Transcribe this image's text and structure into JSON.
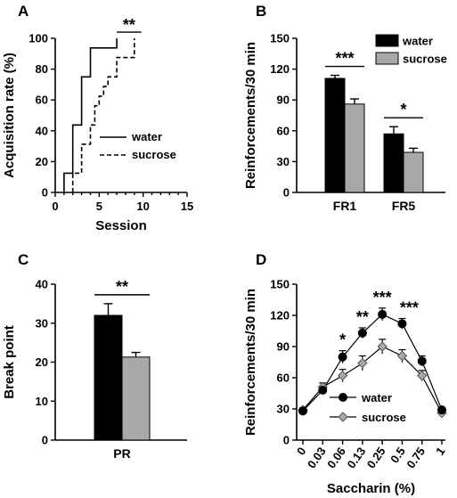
{
  "colors": {
    "water": "#000000",
    "sucrose": "#a8a8a8",
    "err": "#000000"
  },
  "chart_data": [
    {
      "panel": "A",
      "type": "line",
      "step": true,
      "xlabel": "Session",
      "ylabel": "Acquisition rate (%)",
      "xlim": [
        0,
        15
      ],
      "ylim": [
        0,
        100
      ],
      "xticks": [
        "0",
        "1",
        "2",
        "3",
        "4",
        "5",
        "6",
        "7",
        "8",
        "9",
        "10",
        "11",
        "12",
        "13",
        "14",
        "15"
      ],
      "yticks": [
        "0",
        "20",
        "40",
        "60",
        "80",
        "100"
      ],
      "series": [
        {
          "name": "water",
          "style": "solid",
          "points": [
            [
              1,
              0
            ],
            [
              1,
              12.5
            ],
            [
              2,
              12.5
            ],
            [
              2,
              43.75
            ],
            [
              3,
              43.75
            ],
            [
              3,
              75
            ],
            [
              4,
              75
            ],
            [
              4,
              93.75
            ],
            [
              7,
              93.75
            ],
            [
              7,
              100
            ]
          ]
        },
        {
          "name": "sucrose",
          "style": "dashed",
          "points": [
            [
              2,
              0
            ],
            [
              2,
              12.5
            ],
            [
              3,
              12.5
            ],
            [
              3,
              31.25
            ],
            [
              4,
              31.25
            ],
            [
              4,
              43.75
            ],
            [
              4.5,
              43.75
            ],
            [
              4.5,
              56.25
            ],
            [
              5,
              56.25
            ],
            [
              5,
              62.5
            ],
            [
              5.5,
              62.5
            ],
            [
              5.5,
              68.75
            ],
            [
              6,
              68.75
            ],
            [
              6,
              75
            ],
            [
              7,
              75
            ],
            [
              7,
              87.5
            ],
            [
              9,
              87.5
            ],
            [
              9,
              100
            ]
          ]
        }
      ],
      "annotations": [
        {
          "text": "**",
          "bracket": [
            7,
            9.8
          ],
          "y": 104
        }
      ]
    },
    {
      "panel": "B",
      "type": "bar",
      "ylabel": "Reinforcements/30 min",
      "ylim": [
        0,
        150
      ],
      "yticks": [
        "0",
        "30",
        "60",
        "90",
        "120",
        "150"
      ],
      "categories": [
        "FR1",
        "FR5"
      ],
      "series": [
        {
          "name": "water",
          "values": [
            111,
            57
          ],
          "errors": [
            3,
            7
          ]
        },
        {
          "name": "sucrose",
          "values": [
            86,
            39
          ],
          "errors": [
            5,
            4
          ]
        }
      ],
      "annotations": [
        {
          "text": "***",
          "category": 0
        },
        {
          "text": "*",
          "category": 1
        }
      ]
    },
    {
      "panel": "C",
      "type": "bar",
      "ylabel": "Break point",
      "ylim": [
        0,
        40
      ],
      "yticks": [
        "0",
        "10",
        "20",
        "30",
        "40"
      ],
      "categories": [
        "PR"
      ],
      "series": [
        {
          "name": "water",
          "values": [
            32
          ],
          "errors": [
            3
          ]
        },
        {
          "name": "sucrose",
          "values": [
            21.3
          ],
          "errors": [
            1.2
          ]
        }
      ],
      "annotations": [
        {
          "text": "**",
          "category": 0
        }
      ]
    },
    {
      "panel": "D",
      "type": "line",
      "xlabel": "Saccharin (%)",
      "ylabel": "Reinforcements/30 min",
      "ylim": [
        0,
        150
      ],
      "yticks": [
        "0",
        "30",
        "60",
        "90",
        "120",
        "150"
      ],
      "categories": [
        "0",
        "0.03",
        "0.06",
        "0.13",
        "0.25",
        "0.5",
        "0.75",
        "1"
      ],
      "series": [
        {
          "name": "water",
          "marker": "circle",
          "values": [
            28,
            48,
            80,
            103,
            121,
            112,
            76,
            29
          ],
          "errors": [
            2,
            4,
            6,
            5,
            6,
            5,
            5,
            2
          ]
        },
        {
          "name": "sucrose",
          "marker": "diamond",
          "values": [
            29,
            51,
            62,
            74,
            90,
            81,
            62,
            26
          ],
          "errors": [
            2,
            4,
            6,
            7,
            7,
            6,
            5,
            2
          ]
        }
      ],
      "annotations": [
        {
          "text": "*",
          "category": 2
        },
        {
          "text": "**",
          "category": 3
        },
        {
          "text": "***",
          "category": 4
        },
        {
          "text": "***",
          "category": 5
        }
      ]
    }
  ]
}
